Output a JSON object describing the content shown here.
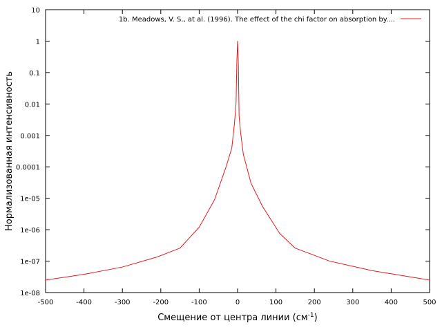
{
  "chart_data": {
    "type": "line",
    "xlabel": "Смещение от центра линии (см",
    "xlabel_sup": "-1",
    "xlabel_close": ")",
    "ylabel": "Нормализованная интенсивность",
    "xlim": [
      -500,
      500
    ],
    "ylim": [
      1e-08,
      10
    ],
    "yscale": "log",
    "grid": false,
    "legend_position": "top-right",
    "x_ticks": [
      -500,
      -400,
      -300,
      -200,
      -100,
      0,
      100,
      200,
      300,
      400,
      500
    ],
    "x_tick_labels": [
      "-500",
      "-400",
      "-300",
      "-200",
      "-100",
      "0",
      "100",
      "200",
      "300",
      "400",
      "500"
    ],
    "y_ticks": [
      1e-08,
      1e-07,
      1e-06,
      1e-05,
      0.0001,
      0.001,
      0.01,
      0.1,
      1,
      10
    ],
    "y_tick_labels": [
      "1e-08",
      "1e-07",
      "1e-06",
      "1e-05",
      "0.0001",
      "0.001",
      "0.01",
      "0.1",
      "1",
      "10"
    ],
    "series": [
      {
        "name": "1b. Meadows, V. S., at al. (1996). The effect of the chi factor on absorption by....",
        "color": "#e41a1c",
        "x": [
          -500,
          -400,
          -300,
          -210,
          -150,
          -100,
          -60,
          -30,
          -15,
          -8,
          -4,
          -2,
          0,
          2,
          4,
          8,
          15,
          35,
          65,
          110,
          150,
          240,
          350,
          500
        ],
        "y": [
          2.5e-08,
          3.8e-08,
          6.5e-08,
          1.35e-07,
          2.6e-07,
          1.2e-06,
          9e-06,
          0.0001,
          0.0004,
          0.0025,
          0.01,
          0.2,
          1.0,
          0.2,
          0.004,
          0.0012,
          0.00025,
          3e-05,
          5.5e-06,
          7.5e-07,
          2.6e-07,
          1e-07,
          5e-08,
          2.5e-08
        ]
      }
    ]
  }
}
